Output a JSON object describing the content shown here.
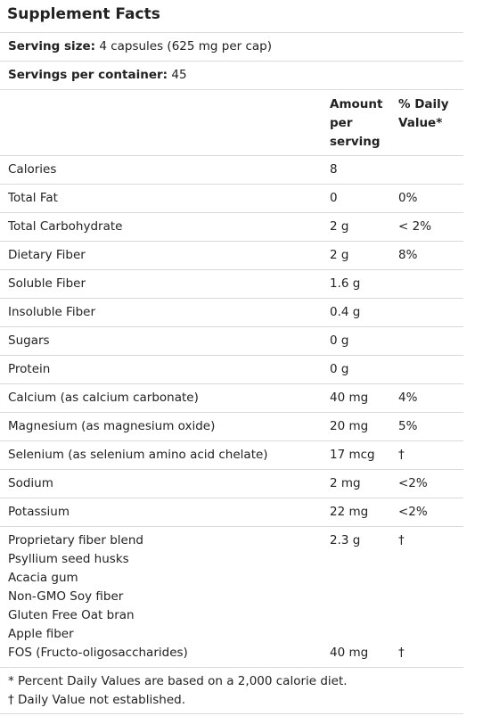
{
  "title": "Supplement Facts",
  "serving_size": {
    "label": "Serving size:",
    "value": "4 capsules (625 mg per cap)"
  },
  "servings_per_container": {
    "label": "Servings per container:",
    "value": "45"
  },
  "columns": {
    "amount": [
      "Amount",
      "per",
      "serving"
    ],
    "daily_value": [
      "% Daily",
      "Value*"
    ]
  },
  "rows": [
    {
      "name": "Calories",
      "amount": "8",
      "dv": ""
    },
    {
      "name": "Total Fat",
      "amount": "0",
      "dv": "0%"
    },
    {
      "name": "Total Carbohydrate",
      "amount": "2 g",
      "dv": "< 2%"
    },
    {
      "name": "Dietary Fiber",
      "amount": "2 g",
      "dv": "8%"
    },
    {
      "name": "Soluble Fiber",
      "amount": "1.6 g",
      "dv": ""
    },
    {
      "name": "Insoluble Fiber",
      "amount": "0.4 g",
      "dv": ""
    },
    {
      "name": "Sugars",
      "amount": "0 g",
      "dv": ""
    },
    {
      "name": "Protein",
      "amount": "0 g",
      "dv": ""
    },
    {
      "name": "Calcium (as calcium carbonate)",
      "amount": "40 mg",
      "dv": "4%"
    },
    {
      "name": "Magnesium (as magnesium oxide)",
      "amount": "20 mg",
      "dv": "5%"
    },
    {
      "name": "Selenium (as selenium amino acid chelate)",
      "amount": "17 mcg",
      "dv": "†"
    },
    {
      "name": "Sodium",
      "amount": "2 mg",
      "dv": "<2%"
    },
    {
      "name": "Potassium",
      "amount": "22 mg",
      "dv": "<2%"
    }
  ],
  "blend": {
    "lines": [
      "Proprietary fiber blend",
      "Psyllium seed husks",
      "Acacia gum",
      "Non-GMO Soy fiber",
      "Gluten Free Oat bran",
      "Apple fiber",
      "FOS (Fructo-oligosaccharides)"
    ],
    "amount": "2.3 g",
    "dv": "†",
    "fos_amount": "40 mg",
    "fos_dv": "†"
  },
  "footnotes": [
    "* Percent Daily Values are based on a 2,000 calorie diet.",
    "† Daily Value not established."
  ]
}
